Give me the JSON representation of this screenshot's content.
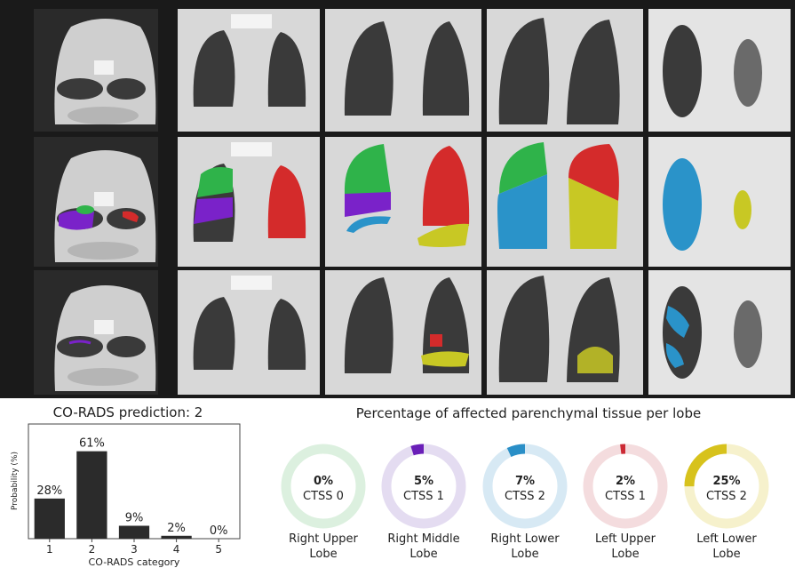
{
  "ct_panel": {
    "rows": [
      {
        "name": "original"
      },
      {
        "name": "lobe-segmentation"
      },
      {
        "name": "lesion-segmentation"
      }
    ],
    "columns": 5,
    "lobe_colors": {
      "right_upper": "#2fb34a",
      "right_middle": "#7a22c9",
      "right_lower": "#2a93c9",
      "left_upper": "#d42b2b",
      "left_lower": "#c8c824"
    }
  },
  "chart_data": [
    {
      "type": "bar",
      "title": "CO-RADS prediction: 2",
      "xlabel": "CO-RADS category",
      "ylabel": "Probability (%)",
      "categories": [
        "1",
        "2",
        "3",
        "4",
        "5"
      ],
      "values": [
        28,
        61,
        9,
        2,
        0
      ],
      "labels": [
        "28%",
        "61%",
        "9%",
        "2%",
        "0%"
      ],
      "ylim": [
        0,
        80
      ],
      "bar_color": "#2b2b2b"
    },
    {
      "type": "pie",
      "title": "Percentage of affected parenchymal tissue per lobe",
      "lobes": [
        {
          "name": "Right Upper Lobe",
          "line1": "Right Upper",
          "line2": "Lobe",
          "percent": 0,
          "percent_label": "0%",
          "ctss": "CTSS 0",
          "color": "#2fb34a",
          "ring_color": "#dcf0df"
        },
        {
          "name": "Right Middle Lobe",
          "line1": "Right Middle",
          "line2": "Lobe",
          "percent": 5,
          "percent_label": "5%",
          "ctss": "CTSS 1",
          "color": "#6a1fb8",
          "ring_color": "#e4dcf1"
        },
        {
          "name": "Right Lower Lobe",
          "line1": "Right Lower",
          "line2": "Lobe",
          "percent": 7,
          "percent_label": "7%",
          "ctss": "CTSS 2",
          "color": "#2a8fc7",
          "ring_color": "#d7e9f4"
        },
        {
          "name": "Left Upper Lobe",
          "line1": "Left Upper",
          "line2": "Lobe",
          "percent": 2,
          "percent_label": "2%",
          "ctss": "CTSS 1",
          "color": "#cc2a35",
          "ring_color": "#f4dcde"
        },
        {
          "name": "Left Lower Lobe",
          "line1": "Left Lower",
          "line2": "Lobe",
          "percent": 25,
          "percent_label": "25%",
          "ctss": "CTSS 2",
          "color": "#d7c21c",
          "ring_color": "#f6f1cc"
        }
      ]
    }
  ]
}
